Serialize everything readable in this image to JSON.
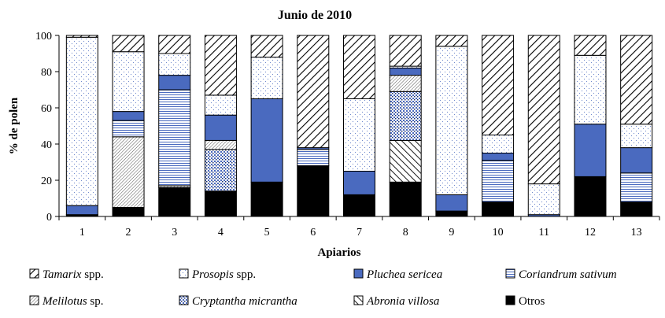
{
  "chart_data": {
    "type": "bar",
    "stacked": true,
    "title": "Junio de 2010",
    "xlabel": "Apiarios",
    "ylabel": "% de polen",
    "ylim": [
      0,
      100
    ],
    "yticks": [
      0,
      20,
      40,
      60,
      80,
      100
    ],
    "categories": [
      "1",
      "2",
      "3",
      "4",
      "5",
      "6",
      "7",
      "8",
      "9",
      "10",
      "11",
      "12",
      "13"
    ],
    "series": [
      {
        "name": "Otros",
        "italic": "",
        "suffix": "Otros",
        "pattern": "solid-black",
        "values": [
          1,
          5,
          16,
          14,
          19,
          28,
          12,
          19,
          3,
          8,
          0,
          22,
          8
        ]
      },
      {
        "name": "Abronia villosa",
        "italic": "Abronia villosa",
        "suffix": "",
        "pattern": "backslash",
        "values": [
          0,
          0,
          0,
          0,
          0,
          0,
          0,
          23,
          0,
          0,
          0,
          0,
          0
        ]
      },
      {
        "name": "Cryptantha micrantha",
        "italic": "Cryptantha micrantha",
        "suffix": "",
        "pattern": "dots",
        "values": [
          0,
          0,
          0,
          23,
          0,
          0,
          0,
          27,
          0,
          0,
          0,
          0,
          0
        ]
      },
      {
        "name": "Melilotus sp.",
        "italic": "Melilotus",
        "suffix": " sp.",
        "pattern": "slash-fine",
        "values": [
          0,
          39,
          1,
          5,
          0,
          0,
          0,
          9,
          0,
          0,
          0,
          0,
          0
        ]
      },
      {
        "name": "Coriandrum sativum",
        "italic": "Coriandrum sativum",
        "suffix": "",
        "pattern": "hlines",
        "values": [
          0,
          9,
          53,
          0,
          0,
          9,
          0,
          0,
          0,
          23,
          0,
          0,
          16
        ]
      },
      {
        "name": "Pluchea sericea",
        "italic": "Pluchea sericea",
        "suffix": "",
        "pattern": "solid-blue",
        "values": [
          5,
          5,
          8,
          14,
          46,
          1,
          13,
          4,
          9,
          4,
          1,
          29,
          14
        ]
      },
      {
        "name": "Prosopis spp.",
        "italic": "Prosopis",
        "suffix": " spp.",
        "pattern": "sparse-dots",
        "values": [
          93,
          33,
          12,
          11,
          23,
          0,
          40,
          1,
          82,
          10,
          17,
          38,
          13
        ]
      },
      {
        "name": "Tamarix spp.",
        "italic": "Tamarix",
        "suffix": " spp.",
        "pattern": "slash-bold",
        "values": [
          1,
          9,
          10,
          33,
          12,
          62,
          35,
          17,
          6,
          55,
          82,
          11,
          49
        ]
      }
    ],
    "legend_order": [
      "Tamarix spp.",
      "Prosopis spp.",
      "Pluchea sericea",
      "Coriandrum sativum",
      "Melilotus sp.",
      "Cryptantha micrantha",
      "Abronia villosa",
      "Otros"
    ],
    "legend_position": "bottom",
    "colors": {
      "blue": "#4a6abf",
      "black": "#000000",
      "hatch": "#333333"
    }
  }
}
